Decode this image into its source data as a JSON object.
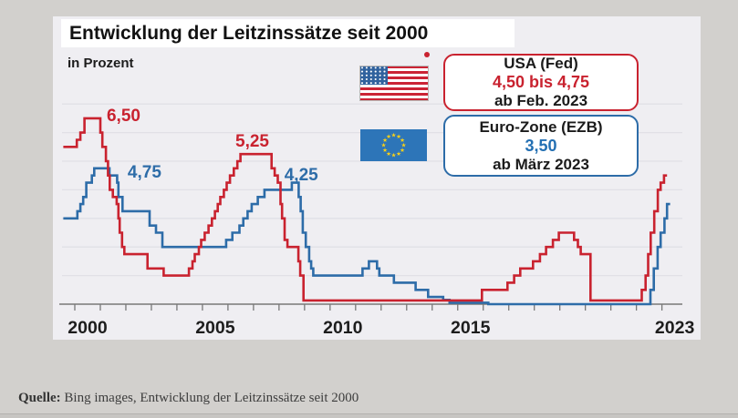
{
  "title": "Entwicklung der Leitzinssätze seit 2000",
  "subtitle": "in Prozent",
  "source": {
    "label": "Quelle:",
    "text": " Bing images, Entwicklung der Leitzinssätze seit 2000"
  },
  "legend": {
    "usa": {
      "line1": "USA (Fed)",
      "line2": "4,50 bis 4,75",
      "line3": "ab Feb. 2023"
    },
    "ezb": {
      "line1": "Euro-Zone (EZB)",
      "line2": "3,50",
      "line3": "ab März 2023"
    }
  },
  "colors": {
    "usa": "#c9222f",
    "ezb": "#2d6ca8",
    "grid": "#e1e0e6",
    "axis": "#787878",
    "eu_flag_blue": "#2d75b8",
    "eu_flag_yellow": "#fcd116",
    "us_flag_red": "#cb2435",
    "us_flag_blue": "#30629e"
  },
  "chart_data": {
    "type": "line",
    "title": "Entwicklung der Leitzinssätze seit 2000",
    "ylabel": "in Prozent",
    "x_range": [
      1999.5,
      2023.8
    ],
    "y_range": [
      0,
      7.3
    ],
    "grid": true,
    "gridlines_y": [
      1,
      2,
      3,
      4,
      5,
      6,
      7
    ],
    "x_ticks": {
      "from": 2000,
      "to": 2023
    },
    "x_tick_labels": [
      {
        "year": 2000,
        "label": "2000"
      },
      {
        "year": 2005,
        "label": "2005"
      },
      {
        "year": 2010,
        "label": "2010"
      },
      {
        "year": 2015,
        "label": "2015"
      },
      {
        "year": 2023,
        "label": "2023"
      }
    ],
    "series": [
      {
        "name": "Euro-Zone (EZB)",
        "color": "#2d6ca8",
        "end": 2023.32,
        "points": [
          [
            1999.55,
            3.0
          ],
          [
            2000.1,
            3.25
          ],
          [
            2000.22,
            3.5
          ],
          [
            2000.33,
            3.75
          ],
          [
            2000.45,
            4.25
          ],
          [
            2000.67,
            4.5
          ],
          [
            2000.76,
            4.75
          ],
          [
            2001.36,
            4.5
          ],
          [
            2001.66,
            4.25
          ],
          [
            2001.71,
            3.75
          ],
          [
            2001.87,
            3.25
          ],
          [
            2002.93,
            2.75
          ],
          [
            2003.18,
            2.5
          ],
          [
            2003.43,
            2.0
          ],
          [
            2005.93,
            2.25
          ],
          [
            2006.17,
            2.5
          ],
          [
            2006.45,
            2.75
          ],
          [
            2006.6,
            3.0
          ],
          [
            2006.77,
            3.25
          ],
          [
            2006.93,
            3.5
          ],
          [
            2007.17,
            3.75
          ],
          [
            2007.43,
            4.0
          ],
          [
            2008.5,
            4.25
          ],
          [
            2008.77,
            3.75
          ],
          [
            2008.85,
            3.25
          ],
          [
            2008.93,
            2.5
          ],
          [
            2009.05,
            2.0
          ],
          [
            2009.18,
            1.5
          ],
          [
            2009.26,
            1.25
          ],
          [
            2009.34,
            1.0
          ],
          [
            2011.27,
            1.25
          ],
          [
            2011.52,
            1.5
          ],
          [
            2011.84,
            1.25
          ],
          [
            2011.93,
            1.0
          ],
          [
            2012.5,
            0.75
          ],
          [
            2013.35,
            0.5
          ],
          [
            2013.84,
            0.25
          ],
          [
            2014.43,
            0.15
          ],
          [
            2014.68,
            0.05
          ],
          [
            2016.2,
            0.0
          ],
          [
            2022.55,
            0.5
          ],
          [
            2022.68,
            1.25
          ],
          [
            2022.83,
            2.0
          ],
          [
            2022.95,
            2.5
          ],
          [
            2023.1,
            3.0
          ],
          [
            2023.2,
            3.5
          ]
        ]
      },
      {
        "name": "USA (Fed)",
        "color": "#c9222f",
        "end": 2023.2,
        "points": [
          [
            1999.55,
            5.5
          ],
          [
            2000.08,
            5.75
          ],
          [
            2000.22,
            6.0
          ],
          [
            2000.38,
            6.5
          ],
          [
            2001.0,
            6.0
          ],
          [
            2001.08,
            5.5
          ],
          [
            2001.22,
            5.0
          ],
          [
            2001.3,
            4.5
          ],
          [
            2001.37,
            4.0
          ],
          [
            2001.49,
            3.75
          ],
          [
            2001.64,
            3.5
          ],
          [
            2001.71,
            3.0
          ],
          [
            2001.76,
            2.5
          ],
          [
            2001.85,
            2.0
          ],
          [
            2001.94,
            1.75
          ],
          [
            2002.85,
            1.25
          ],
          [
            2003.48,
            1.0
          ],
          [
            2004.47,
            1.25
          ],
          [
            2004.61,
            1.5
          ],
          [
            2004.7,
            1.75
          ],
          [
            2004.86,
            2.0
          ],
          [
            2004.95,
            2.25
          ],
          [
            2005.09,
            2.5
          ],
          [
            2005.24,
            2.75
          ],
          [
            2005.37,
            3.0
          ],
          [
            2005.49,
            3.25
          ],
          [
            2005.6,
            3.5
          ],
          [
            2005.7,
            3.75
          ],
          [
            2005.84,
            4.0
          ],
          [
            2005.95,
            4.25
          ],
          [
            2006.08,
            4.5
          ],
          [
            2006.23,
            4.75
          ],
          [
            2006.37,
            5.0
          ],
          [
            2006.49,
            5.25
          ],
          [
            2007.71,
            4.75
          ],
          [
            2007.83,
            4.5
          ],
          [
            2007.95,
            4.25
          ],
          [
            2008.06,
            3.5
          ],
          [
            2008.12,
            3.0
          ],
          [
            2008.22,
            2.25
          ],
          [
            2008.33,
            2.0
          ],
          [
            2008.76,
            1.5
          ],
          [
            2008.83,
            1.0
          ],
          [
            2008.96,
            0.13
          ],
          [
            2015.95,
            0.5
          ],
          [
            2016.95,
            0.75
          ],
          [
            2017.21,
            1.0
          ],
          [
            2017.45,
            1.25
          ],
          [
            2017.95,
            1.5
          ],
          [
            2018.22,
            1.75
          ],
          [
            2018.46,
            2.0
          ],
          [
            2018.73,
            2.25
          ],
          [
            2018.96,
            2.5
          ],
          [
            2019.56,
            2.25
          ],
          [
            2019.71,
            2.0
          ],
          [
            2019.82,
            1.75
          ],
          [
            2020.2,
            0.13
          ],
          [
            2022.21,
            0.5
          ],
          [
            2022.36,
            1.0
          ],
          [
            2022.46,
            1.75
          ],
          [
            2022.56,
            2.5
          ],
          [
            2022.7,
            3.25
          ],
          [
            2022.84,
            4.0
          ],
          [
            2022.95,
            4.25
          ],
          [
            2023.08,
            4.5
          ]
        ]
      }
    ],
    "annotations": [
      {
        "text": "6,50",
        "year": 2001.25,
        "value": 6.4,
        "color": "#c9222f"
      },
      {
        "text": "4,75",
        "year": 2002.07,
        "value": 4.43,
        "color": "#2d6ca8"
      },
      {
        "text": "5,25",
        "year": 2006.29,
        "value": 5.51,
        "color": "#c9222f"
      },
      {
        "text": "4,25",
        "year": 2008.21,
        "value": 4.33,
        "color": "#2d6ca8"
      }
    ]
  }
}
